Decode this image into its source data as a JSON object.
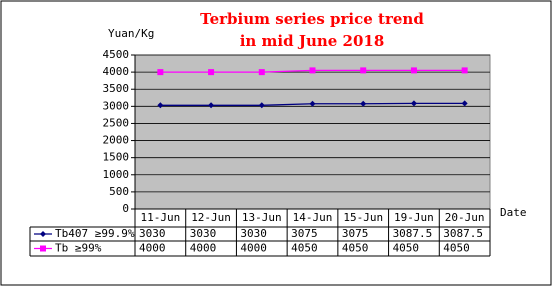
{
  "chart_data": {
    "type": "line",
    "title": "Terbium series price trend",
    "subtitle": "in mid June 2018",
    "y_label": "Yuan/Kg",
    "x_label": "Date",
    "categories": [
      "11-Jun",
      "12-Jun",
      "13-Jun",
      "14-Jun",
      "15-Jun",
      "19-Jun",
      "20-Jun"
    ],
    "series": [
      {
        "name": "Tb407 ≥99.9%",
        "color": "#000080",
        "marker": "diamond",
        "values": [
          3030,
          3030,
          3030,
          3075,
          3075,
          3087.5,
          3087.5
        ]
      },
      {
        "name": "Tb ≥99%",
        "color": "#ff00ff",
        "marker": "square",
        "values": [
          4000,
          4000,
          4000,
          4050,
          4050,
          4050,
          4050
        ]
      }
    ],
    "ylim": [
      0,
      4500
    ],
    "yticks": [
      0,
      500,
      1000,
      1500,
      2000,
      2500,
      3000,
      3500,
      4000,
      4500
    ],
    "grid": true
  }
}
